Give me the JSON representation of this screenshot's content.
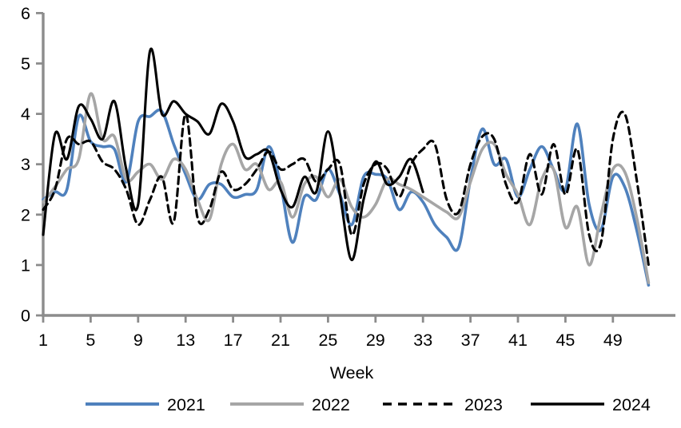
{
  "chart_data": {
    "type": "line",
    "title": "",
    "xlabel": "Week",
    "ylabel": "",
    "x_ticks": [
      1,
      5,
      9,
      13,
      17,
      21,
      25,
      29,
      33,
      37,
      41,
      45,
      49
    ],
    "y_ticks": [
      0,
      1,
      2,
      3,
      4,
      5,
      6
    ],
    "xlim": [
      1,
      52.5
    ],
    "ylim": [
      0,
      6
    ],
    "grid": false,
    "legend_position": "bottom",
    "axis_color": "#8c8c8c",
    "text_color": "#000000",
    "series": [
      {
        "name": "2021",
        "color": "#4f81bd",
        "dash": "solid",
        "width": 3.6,
        "start_week": 1,
        "values": [
          2.3,
          2.45,
          2.5,
          3.95,
          3.45,
          3.35,
          3.3,
          2.65,
          3.85,
          3.95,
          4.05,
          3.4,
          2.8,
          2.3,
          2.6,
          2.6,
          2.35,
          2.4,
          2.5,
          3.35,
          2.6,
          1.45,
          2.35,
          2.3,
          2.9,
          2.4,
          1.8,
          2.75,
          2.8,
          2.7,
          2.1,
          2.45,
          2.25,
          1.8,
          1.55,
          1.35,
          2.7,
          3.7,
          3.0,
          3.1,
          2.35,
          2.9,
          3.35,
          2.9,
          2.5,
          3.8,
          2.2,
          1.7,
          2.75,
          2.55,
          1.7,
          0.6
        ]
      },
      {
        "name": "2022",
        "color": "#a6a6a6",
        "dash": "solid",
        "width": 3.6,
        "start_week": 1,
        "values": [
          2.25,
          2.55,
          2.9,
          3.1,
          4.4,
          3.5,
          3.55,
          2.7,
          2.85,
          3.0,
          2.7,
          3.1,
          2.9,
          2.3,
          1.9,
          3.0,
          3.4,
          2.9,
          3.0,
          2.5,
          2.65,
          1.95,
          2.6,
          2.75,
          2.35,
          2.7,
          2.15,
          1.95,
          2.2,
          2.7,
          2.6,
          2.5,
          2.35,
          2.2,
          2.05,
          1.95,
          2.65,
          3.3,
          3.4,
          2.8,
          2.4,
          1.8,
          2.7,
          2.9,
          1.75,
          2.15,
          1.0,
          2.0,
          2.9,
          2.85,
          1.95,
          0.65
        ]
      },
      {
        "name": "2023",
        "color": "#000000",
        "dash": "dashed",
        "width": 3.1,
        "start_week": 1,
        "values": [
          2.1,
          2.5,
          3.5,
          3.4,
          3.45,
          3.05,
          2.9,
          2.5,
          1.8,
          2.3,
          2.75,
          1.85,
          4.0,
          1.95,
          2.1,
          2.85,
          2.5,
          2.6,
          2.9,
          3.25,
          2.9,
          3.0,
          3.1,
          2.65,
          2.9,
          3.0,
          1.6,
          2.6,
          3.0,
          2.9,
          2.35,
          3.0,
          3.3,
          3.4,
          2.3,
          2.05,
          3.0,
          3.55,
          3.5,
          2.6,
          2.25,
          3.2,
          2.4,
          3.4,
          2.4,
          3.3,
          1.6,
          1.45,
          3.5,
          4.0,
          2.7,
          1.0
        ]
      },
      {
        "name": "2024",
        "color": "#000000",
        "dash": "solid",
        "width": 3.1,
        "start_week": 1,
        "values": [
          1.6,
          3.6,
          3.1,
          4.15,
          3.9,
          3.5,
          4.25,
          2.9,
          2.2,
          5.25,
          4.0,
          4.25,
          4.0,
          3.85,
          3.6,
          4.2,
          3.85,
          3.15,
          3.2,
          3.25,
          2.5,
          2.15,
          2.75,
          2.45,
          3.65,
          2.4,
          1.1,
          2.3,
          3.05,
          2.6,
          2.75,
          3.1,
          2.45
        ]
      }
    ]
  }
}
